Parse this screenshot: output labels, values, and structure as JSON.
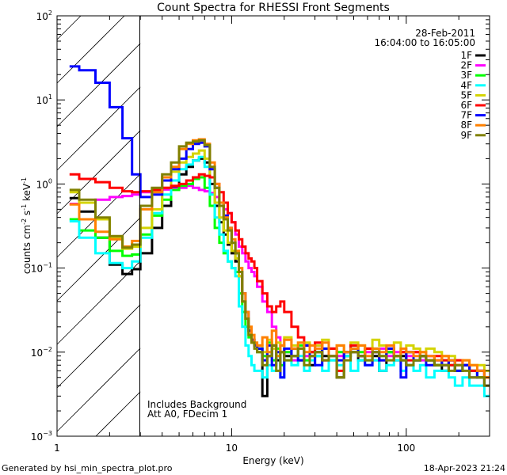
{
  "chart_data": {
    "type": "line",
    "title": "Count Spectra for RHESSI Front Segments",
    "xlabel": "Energy (keV)",
    "ylabel_parts": [
      "counts cm",
      "-2",
      " s",
      "-1",
      " keV",
      "-1"
    ],
    "xscale": "log",
    "yscale": "log",
    "xlim": [
      1,
      300
    ],
    "ylim": [
      0.001,
      100
    ],
    "x_tick_labels": [
      {
        "value": 1,
        "label": "1"
      },
      {
        "value": 10,
        "label": "10"
      },
      {
        "value": 100,
        "label": "100"
      }
    ],
    "y_tick_labels": [
      {
        "value": 100,
        "base": "10",
        "exp": "2"
      },
      {
        "value": 10,
        "base": "10",
        "exp": "1"
      },
      {
        "value": 1,
        "base": "10",
        "exp": "0"
      },
      {
        "value": 0.1,
        "base": "10",
        "exp": "−1"
      },
      {
        "value": 0.01,
        "base": "10",
        "exp": "−2"
      },
      {
        "value": 0.001,
        "base": "10",
        "exp": "−3"
      }
    ],
    "hatched_region_keV": [
      1,
      3
    ],
    "legend": {
      "placement": "top-right",
      "date": "28-Feb-2011",
      "time_range": "16:04:00 to 16:05:00"
    },
    "annotations": [
      "Includes Background",
      "Att A0, FDecim 1"
    ],
    "energy_bin_edges": [
      1.18,
      1.34,
      1.66,
      2.0,
      2.37,
      2.69,
      3.0,
      3.5,
      4,
      4.5,
      5,
      5.5,
      6,
      6.5,
      7,
      7.5,
      8,
      8.5,
      9,
      9.5,
      10,
      10.5,
      11,
      11.5,
      12,
      12.5,
      13,
      13.5,
      14,
      15,
      16,
      17,
      18,
      19,
      20,
      22,
      24,
      26,
      28,
      30,
      33,
      36,
      40,
      44,
      48,
      53,
      58,
      64,
      70,
      77,
      85,
      93,
      100,
      110,
      120,
      130,
      145,
      160,
      175,
      190,
      210,
      230,
      255,
      280,
      300
    ],
    "series": [
      {
        "name": "1F",
        "color": "#000000",
        "values": [
          0.68,
          0.47,
          0.23,
          0.11,
          0.085,
          0.097,
          0.15,
          0.3,
          0.55,
          0.9,
          1.3,
          1.6,
          1.9,
          2.0,
          1.8,
          1.0,
          0.55,
          0.35,
          0.25,
          0.19,
          0.15,
          0.12,
          0.08,
          0.04,
          0.025,
          0.018,
          0.014,
          0.012,
          0.011,
          0.003,
          0.009,
          0.012,
          0.008,
          0.01,
          0.009,
          0.011,
          0.008,
          0.012,
          0.007,
          0.01,
          0.009,
          0.011,
          0.005,
          0.009,
          0.01,
          0.008,
          0.011,
          0.009,
          0.006,
          0.01,
          0.008,
          0.009,
          0.007,
          0.008,
          0.009,
          0.008,
          0.007,
          0.006,
          0.008,
          0.006,
          0.007,
          0.006,
          0.005,
          0.004
        ]
      },
      {
        "name": "2F",
        "color": "#ff00ff",
        "values": [
          0.58,
          0.6,
          0.65,
          0.7,
          0.72,
          0.75,
          0.8,
          0.82,
          0.86,
          0.88,
          0.9,
          0.95,
          0.9,
          0.85,
          0.82,
          0.78,
          0.7,
          0.55,
          0.5,
          0.45,
          0.35,
          0.25,
          0.18,
          0.15,
          0.12,
          0.1,
          0.09,
          0.08,
          0.06,
          0.04,
          0.03,
          0.02,
          0.015,
          0.012,
          0.01,
          0.008,
          0.011,
          0.009,
          0.01,
          0.012,
          0.008,
          0.011,
          0.009,
          0.01,
          0.012,
          0.009,
          0.01,
          0.008,
          0.011,
          0.009,
          0.01,
          0.008,
          0.009,
          0.01,
          0.008,
          0.009,
          0.008,
          0.007,
          0.008,
          0.007,
          0.007,
          0.006,
          0.006,
          0.005
        ]
      },
      {
        "name": "3F",
        "color": "#00ff00",
        "values": [
          0.38,
          0.28,
          0.23,
          0.16,
          0.14,
          0.145,
          0.25,
          0.42,
          0.65,
          0.85,
          0.95,
          1.0,
          1.15,
          1.2,
          0.9,
          0.55,
          0.3,
          0.2,
          0.15,
          0.12,
          0.1,
          0.09,
          0.05,
          0.03,
          0.02,
          0.015,
          0.013,
          0.012,
          0.01,
          0.009,
          0.013,
          0.008,
          0.011,
          0.007,
          0.01,
          0.009,
          0.012,
          0.008,
          0.01,
          0.009,
          0.011,
          0.008,
          0.01,
          0.009,
          0.012,
          0.01,
          0.008,
          0.011,
          0.009,
          0.01,
          0.009,
          0.008,
          0.01,
          0.008,
          0.009,
          0.008,
          0.007,
          0.008,
          0.007,
          0.006,
          0.007,
          0.006,
          0.005,
          0.005
        ]
      },
      {
        "name": "4F",
        "color": "#00ffff",
        "values": [
          0.36,
          0.23,
          0.15,
          0.115,
          0.1,
          0.12,
          0.23,
          0.45,
          0.75,
          1.1,
          1.5,
          1.7,
          1.9,
          2.1,
          1.6,
          0.75,
          0.4,
          0.25,
          0.16,
          0.12,
          0.1,
          0.08,
          0.035,
          0.02,
          0.012,
          0.009,
          0.007,
          0.006,
          0.006,
          0.005,
          0.007,
          0.006,
          0.009,
          0.005,
          0.008,
          0.007,
          0.009,
          0.006,
          0.008,
          0.009,
          0.006,
          0.008,
          0.007,
          0.009,
          0.006,
          0.008,
          0.007,
          0.008,
          0.006,
          0.007,
          0.008,
          0.006,
          0.007,
          0.006,
          0.007,
          0.005,
          0.006,
          0.006,
          0.005,
          0.004,
          0.005,
          0.004,
          0.004,
          0.003
        ]
      },
      {
        "name": "5F",
        "color": "#d4d400",
        "values": [
          0.8,
          0.6,
          0.38,
          0.23,
          0.17,
          0.18,
          0.3,
          0.5,
          0.9,
          1.4,
          1.8,
          2.1,
          2.3,
          2.5,
          2.0,
          1.2,
          0.6,
          0.4,
          0.28,
          0.2,
          0.16,
          0.13,
          0.08,
          0.04,
          0.025,
          0.016,
          0.013,
          0.012,
          0.012,
          0.01,
          0.014,
          0.011,
          0.013,
          0.01,
          0.015,
          0.012,
          0.011,
          0.013,
          0.01,
          0.012,
          0.014,
          0.011,
          0.012,
          0.01,
          0.013,
          0.012,
          0.011,
          0.014,
          0.012,
          0.011,
          0.013,
          0.01,
          0.012,
          0.011,
          0.01,
          0.011,
          0.01,
          0.009,
          0.009,
          0.008,
          0.008,
          0.007,
          0.007,
          0.006
        ]
      },
      {
        "name": "6F",
        "color": "#ff0000",
        "values": [
          1.3,
          1.15,
          1.05,
          0.9,
          0.82,
          0.8,
          0.82,
          0.85,
          0.9,
          0.95,
          1.0,
          1.1,
          1.2,
          1.3,
          1.25,
          1.2,
          1.0,
          0.8,
          0.6,
          0.45,
          0.35,
          0.28,
          0.22,
          0.18,
          0.15,
          0.13,
          0.12,
          0.1,
          0.07,
          0.05,
          0.035,
          0.03,
          0.035,
          0.04,
          0.03,
          0.02,
          0.015,
          0.012,
          0.01,
          0.013,
          0.008,
          0.011,
          0.006,
          0.01,
          0.012,
          0.009,
          0.011,
          0.01,
          0.008,
          0.011,
          0.009,
          0.01,
          0.008,
          0.01,
          0.009,
          0.008,
          0.009,
          0.008,
          0.007,
          0.008,
          0.007,
          0.006,
          0.006,
          0.005
        ]
      },
      {
        "name": "7F",
        "color": "#0000ff",
        "values": [
          25,
          22.5,
          16,
          8.2,
          3.5,
          1.3,
          0.7,
          0.75,
          1.1,
          1.5,
          2.0,
          2.6,
          3.0,
          3.1,
          2.8,
          1.5,
          0.9,
          0.6,
          0.42,
          0.3,
          0.2,
          0.15,
          0.09,
          0.05,
          0.03,
          0.018,
          0.014,
          0.012,
          0.011,
          0.008,
          0.012,
          0.007,
          0.01,
          0.005,
          0.011,
          0.009,
          0.008,
          0.012,
          0.009,
          0.007,
          0.011,
          0.009,
          0.008,
          0.01,
          0.011,
          0.009,
          0.007,
          0.01,
          0.008,
          0.011,
          0.009,
          0.005,
          0.01,
          0.008,
          0.009,
          0.007,
          0.008,
          0.007,
          0.008,
          0.006,
          0.007,
          0.005,
          0.006,
          0.004
        ]
      },
      {
        "name": "8F",
        "color": "#ff8000",
        "values": [
          0.57,
          0.38,
          0.27,
          0.22,
          0.18,
          0.21,
          0.5,
          0.8,
          1.2,
          1.6,
          2.6,
          3.0,
          3.3,
          3.4,
          3.0,
          1.8,
          1.0,
          0.6,
          0.4,
          0.3,
          0.22,
          0.16,
          0.1,
          0.05,
          0.03,
          0.02,
          0.016,
          0.013,
          0.012,
          0.015,
          0.01,
          0.018,
          0.009,
          0.012,
          0.014,
          0.011,
          0.013,
          0.01,
          0.012,
          0.011,
          0.013,
          0.009,
          0.012,
          0.01,
          0.011,
          0.012,
          0.009,
          0.011,
          0.01,
          0.012,
          0.009,
          0.011,
          0.01,
          0.009,
          0.01,
          0.009,
          0.008,
          0.009,
          0.008,
          0.007,
          0.008,
          0.007,
          0.006,
          0.005
        ]
      },
      {
        "name": "9F",
        "color": "#808000",
        "values": [
          0.85,
          0.65,
          0.4,
          0.24,
          0.175,
          0.19,
          0.55,
          0.9,
          1.3,
          1.8,
          2.8,
          3.1,
          3.2,
          3.3,
          2.9,
          1.6,
          0.9,
          0.55,
          0.38,
          0.28,
          0.2,
          0.15,
          0.09,
          0.04,
          0.025,
          0.016,
          0.013,
          0.011,
          0.01,
          0.007,
          0.009,
          0.012,
          0.006,
          0.01,
          0.008,
          0.009,
          0.011,
          0.007,
          0.009,
          0.01,
          0.008,
          0.009,
          0.005,
          0.008,
          0.01,
          0.009,
          0.008,
          0.01,
          0.009,
          0.008,
          0.009,
          0.008,
          0.007,
          0.008,
          0.009,
          0.008,
          0.007,
          0.007,
          0.006,
          0.007,
          0.006,
          0.005,
          0.005,
          0.004
        ]
      }
    ]
  },
  "footer": {
    "generated_by": "Generated by hsi_min_spectra_plot.pro",
    "timestamp": "18-Apr-2023 21:24"
  }
}
